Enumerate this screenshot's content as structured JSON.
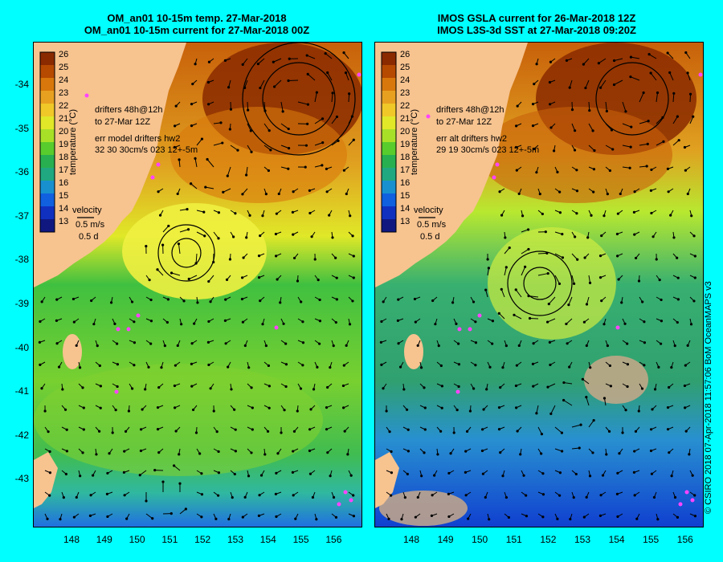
{
  "left": {
    "title_line1": "OM_an01 10-15m temp. 27-Mar-2018",
    "title_line2": "OM_an01 10-15m current for 27-Mar-2018 00Z",
    "drifters_line1": "drifters 48h@12h",
    "drifters_line2": "to 27-Mar 12Z",
    "err_line1": "err model drifters hw2",
    "err_line2": "32 30 30cm/s 023 12+-5m",
    "colorbar_label": "temperature (°C)",
    "velocity_label": "velocity",
    "velocity_speed": "0.5 m/s",
    "velocity_time": "0.5 d"
  },
  "right": {
    "title_line1": "IMOS GSLA current for 26-Mar-2018 12Z",
    "title_line2": "IMOS L3S-3d SST at 27-Mar-2018 09:20Z",
    "drifters_line1": "drifters 48h@12h",
    "drifters_line2": "to 27-Mar 12Z",
    "err_line1": "err alt drifters hw2",
    "err_line2": "29 19 30cm/s 023 12+-5m",
    "colorbar_label": "temperature (°C)",
    "velocity_label": "velocity",
    "velocity_speed": "0.5 m/s",
    "velocity_time": "0.5 d"
  },
  "colorbar_ticks": [
    "26",
    "25",
    "24",
    "23",
    "22",
    "21",
    "20",
    "19",
    "18",
    "17",
    "16",
    "15",
    "14",
    "13"
  ],
  "colorbar_colors": [
    "#8a2a00",
    "#b64a00",
    "#d8780c",
    "#e8a020",
    "#f0c828",
    "#e0e828",
    "#a8e028",
    "#58cc2c",
    "#28b050",
    "#20a880",
    "#1890d0",
    "#1060e0",
    "#1030c0",
    "#101880"
  ],
  "latitude_labels": [
    "-34",
    "-35",
    "-36",
    "-37",
    "-38",
    "-39",
    "-40",
    "-41",
    "-42",
    "-43"
  ],
  "longitude_labels": [
    "148",
    "149",
    "150",
    "151",
    "152",
    "153",
    "154",
    "155",
    "156"
  ],
  "credit": "© CSIRO 2018   07-Apr-2018 11:57:06 BoM OceanMAPS v3",
  "colors": {
    "background": "#00ffff",
    "land": "#f7c38f",
    "drifter": "#ff44ff"
  }
}
